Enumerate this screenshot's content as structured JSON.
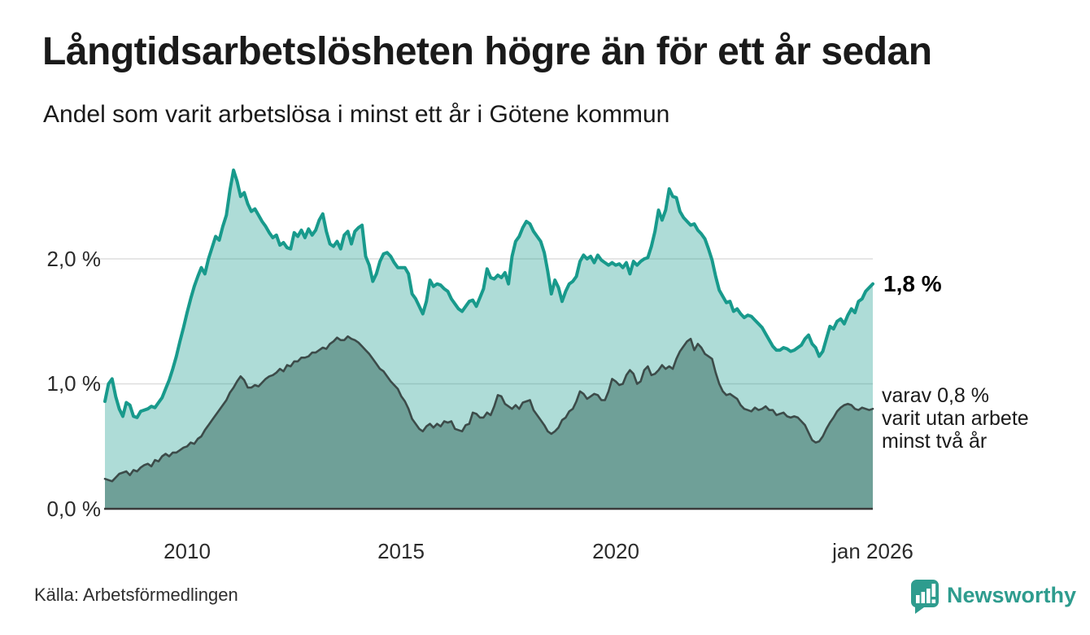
{
  "header": {
    "title": "Långtidsarbetslösheten högre än för ett år sedan",
    "subtitle": "Andel som varit arbetslösa i minst ett år i Götene kommun"
  },
  "chart_data": {
    "type": "area",
    "title": "Långtidsarbetslösheten högre än för ett år sedan",
    "subtitle": "Andel som varit arbetslösa i minst ett år i Götene kommun",
    "unit": "%",
    "frequency": "monthly",
    "x_start": "2008-02",
    "x_end": "2026-01",
    "x_start_decimal": 2008.0833,
    "x_tick_years": [
      2010,
      2015,
      2020,
      2026
    ],
    "x_tick_labels": [
      "2010",
      "2015",
      "2020",
      "jan 2026"
    ],
    "y_tick_labels": [
      "0,0 %",
      "1,0 %",
      "2,0 %"
    ],
    "y_grid": [
      1,
      2
    ],
    "ylim": [
      0,
      2.85
    ],
    "grid": true,
    "legend_position": "none",
    "colors": {
      "upper_line": "#189a8c",
      "upper_fill": "rgba(24,154,140,0.35)",
      "lower_line": "#3c4b49",
      "lower_fill": "#6fa098",
      "grid": "#dedede",
      "axis": "#3a3a3a"
    },
    "series": [
      {
        "name": "Arbetslösa minst ett år",
        "end_value": 1.8,
        "values": [
          0.86,
          1.0,
          1.04,
          0.9,
          0.8,
          0.74,
          0.85,
          0.83,
          0.74,
          0.73,
          0.78,
          0.79,
          0.8,
          0.82,
          0.81,
          0.85,
          0.89,
          0.96,
          1.03,
          1.12,
          1.22,
          1.34,
          1.45,
          1.57,
          1.68,
          1.78,
          1.86,
          1.93,
          1.88,
          2.0,
          2.09,
          2.18,
          2.15,
          2.26,
          2.35,
          2.55,
          2.71,
          2.62,
          2.5,
          2.53,
          2.44,
          2.38,
          2.4,
          2.35,
          2.3,
          2.26,
          2.21,
          2.17,
          2.19,
          2.11,
          2.13,
          2.09,
          2.08,
          2.21,
          2.18,
          2.23,
          2.17,
          2.24,
          2.19,
          2.23,
          2.31,
          2.36,
          2.22,
          2.12,
          2.1,
          2.14,
          2.08,
          2.19,
          2.22,
          2.12,
          2.22,
          2.25,
          2.27,
          2.02,
          1.95,
          1.82,
          1.88,
          1.98,
          2.04,
          2.05,
          2.02,
          1.97,
          1.93,
          1.93,
          1.93,
          1.88,
          1.72,
          1.68,
          1.62,
          1.56,
          1.66,
          1.83,
          1.78,
          1.8,
          1.79,
          1.76,
          1.74,
          1.68,
          1.64,
          1.6,
          1.58,
          1.62,
          1.66,
          1.67,
          1.62,
          1.69,
          1.76,
          1.92,
          1.85,
          1.84,
          1.87,
          1.85,
          1.89,
          1.8,
          2.02,
          2.14,
          2.18,
          2.25,
          2.3,
          2.28,
          2.22,
          2.18,
          2.14,
          2.05,
          1.9,
          1.72,
          1.83,
          1.77,
          1.66,
          1.74,
          1.8,
          1.82,
          1.86,
          1.98,
          2.03,
          2.0,
          2.02,
          1.97,
          2.03,
          1.99,
          1.97,
          1.95,
          1.97,
          1.95,
          1.96,
          1.93,
          1.97,
          1.88,
          1.98,
          1.95,
          1.98,
          2.0,
          2.01,
          2.1,
          2.22,
          2.39,
          2.31,
          2.39,
          2.56,
          2.5,
          2.49,
          2.38,
          2.33,
          2.3,
          2.27,
          2.28,
          2.23,
          2.2,
          2.16,
          2.08,
          1.99,
          1.86,
          1.75,
          1.7,
          1.65,
          1.66,
          1.58,
          1.6,
          1.56,
          1.53,
          1.55,
          1.54,
          1.51,
          1.48,
          1.45,
          1.4,
          1.35,
          1.3,
          1.27,
          1.27,
          1.29,
          1.28,
          1.26,
          1.27,
          1.29,
          1.31,
          1.36,
          1.39,
          1.32,
          1.29,
          1.22,
          1.26,
          1.36,
          1.46,
          1.44,
          1.5,
          1.52,
          1.48,
          1.55,
          1.6,
          1.57,
          1.66,
          1.68,
          1.74,
          1.77,
          1.8
        ]
      },
      {
        "name": "varav utan arbete minst två år",
        "end_value": 0.8,
        "values": [
          0.24,
          0.23,
          0.22,
          0.25,
          0.28,
          0.29,
          0.3,
          0.27,
          0.31,
          0.3,
          0.33,
          0.35,
          0.36,
          0.34,
          0.39,
          0.38,
          0.42,
          0.44,
          0.42,
          0.45,
          0.45,
          0.47,
          0.49,
          0.5,
          0.53,
          0.52,
          0.56,
          0.58,
          0.63,
          0.67,
          0.71,
          0.75,
          0.79,
          0.83,
          0.87,
          0.93,
          0.97,
          1.02,
          1.06,
          1.03,
          0.97,
          0.97,
          0.99,
          0.98,
          1.01,
          1.04,
          1.06,
          1.07,
          1.09,
          1.12,
          1.1,
          1.15,
          1.14,
          1.18,
          1.18,
          1.21,
          1.21,
          1.22,
          1.25,
          1.25,
          1.27,
          1.29,
          1.28,
          1.32,
          1.34,
          1.37,
          1.35,
          1.35,
          1.38,
          1.36,
          1.35,
          1.33,
          1.3,
          1.27,
          1.24,
          1.2,
          1.16,
          1.12,
          1.1,
          1.06,
          1.02,
          0.99,
          0.96,
          0.9,
          0.86,
          0.8,
          0.72,
          0.68,
          0.64,
          0.62,
          0.66,
          0.68,
          0.65,
          0.68,
          0.66,
          0.7,
          0.69,
          0.7,
          0.64,
          0.63,
          0.62,
          0.67,
          0.68,
          0.77,
          0.76,
          0.73,
          0.73,
          0.77,
          0.75,
          0.82,
          0.91,
          0.9,
          0.84,
          0.82,
          0.8,
          0.83,
          0.8,
          0.85,
          0.86,
          0.87,
          0.79,
          0.75,
          0.71,
          0.67,
          0.62,
          0.6,
          0.62,
          0.65,
          0.71,
          0.73,
          0.78,
          0.8,
          0.86,
          0.94,
          0.92,
          0.88,
          0.9,
          0.92,
          0.91,
          0.87,
          0.87,
          0.94,
          1.04,
          1.02,
          0.99,
          1.0,
          1.07,
          1.11,
          1.08,
          1.0,
          1.02,
          1.11,
          1.14,
          1.07,
          1.08,
          1.11,
          1.15,
          1.12,
          1.14,
          1.12,
          1.2,
          1.26,
          1.3,
          1.34,
          1.36,
          1.27,
          1.32,
          1.29,
          1.24,
          1.22,
          1.2,
          1.09,
          1.0,
          0.94,
          0.91,
          0.92,
          0.9,
          0.88,
          0.83,
          0.8,
          0.79,
          0.78,
          0.81,
          0.79,
          0.8,
          0.82,
          0.79,
          0.79,
          0.75,
          0.76,
          0.77,
          0.74,
          0.73,
          0.74,
          0.73,
          0.7,
          0.67,
          0.61,
          0.55,
          0.53,
          0.54,
          0.58,
          0.64,
          0.69,
          0.73,
          0.78,
          0.81,
          0.83,
          0.84,
          0.83,
          0.8,
          0.79,
          0.81,
          0.8,
          0.79,
          0.8
        ]
      }
    ],
    "annotations": {
      "upper_end_label": "1,8 %",
      "lower_end_label_line1": "varav 0,8 %",
      "lower_end_label_line2": "varit utan arbete",
      "lower_end_label_line3": "minst två år"
    }
  },
  "footer": {
    "source": "Källa: Arbetsförmedlingen",
    "brand_name": "Newsworthy",
    "brand_color": "#2e9c8e"
  }
}
